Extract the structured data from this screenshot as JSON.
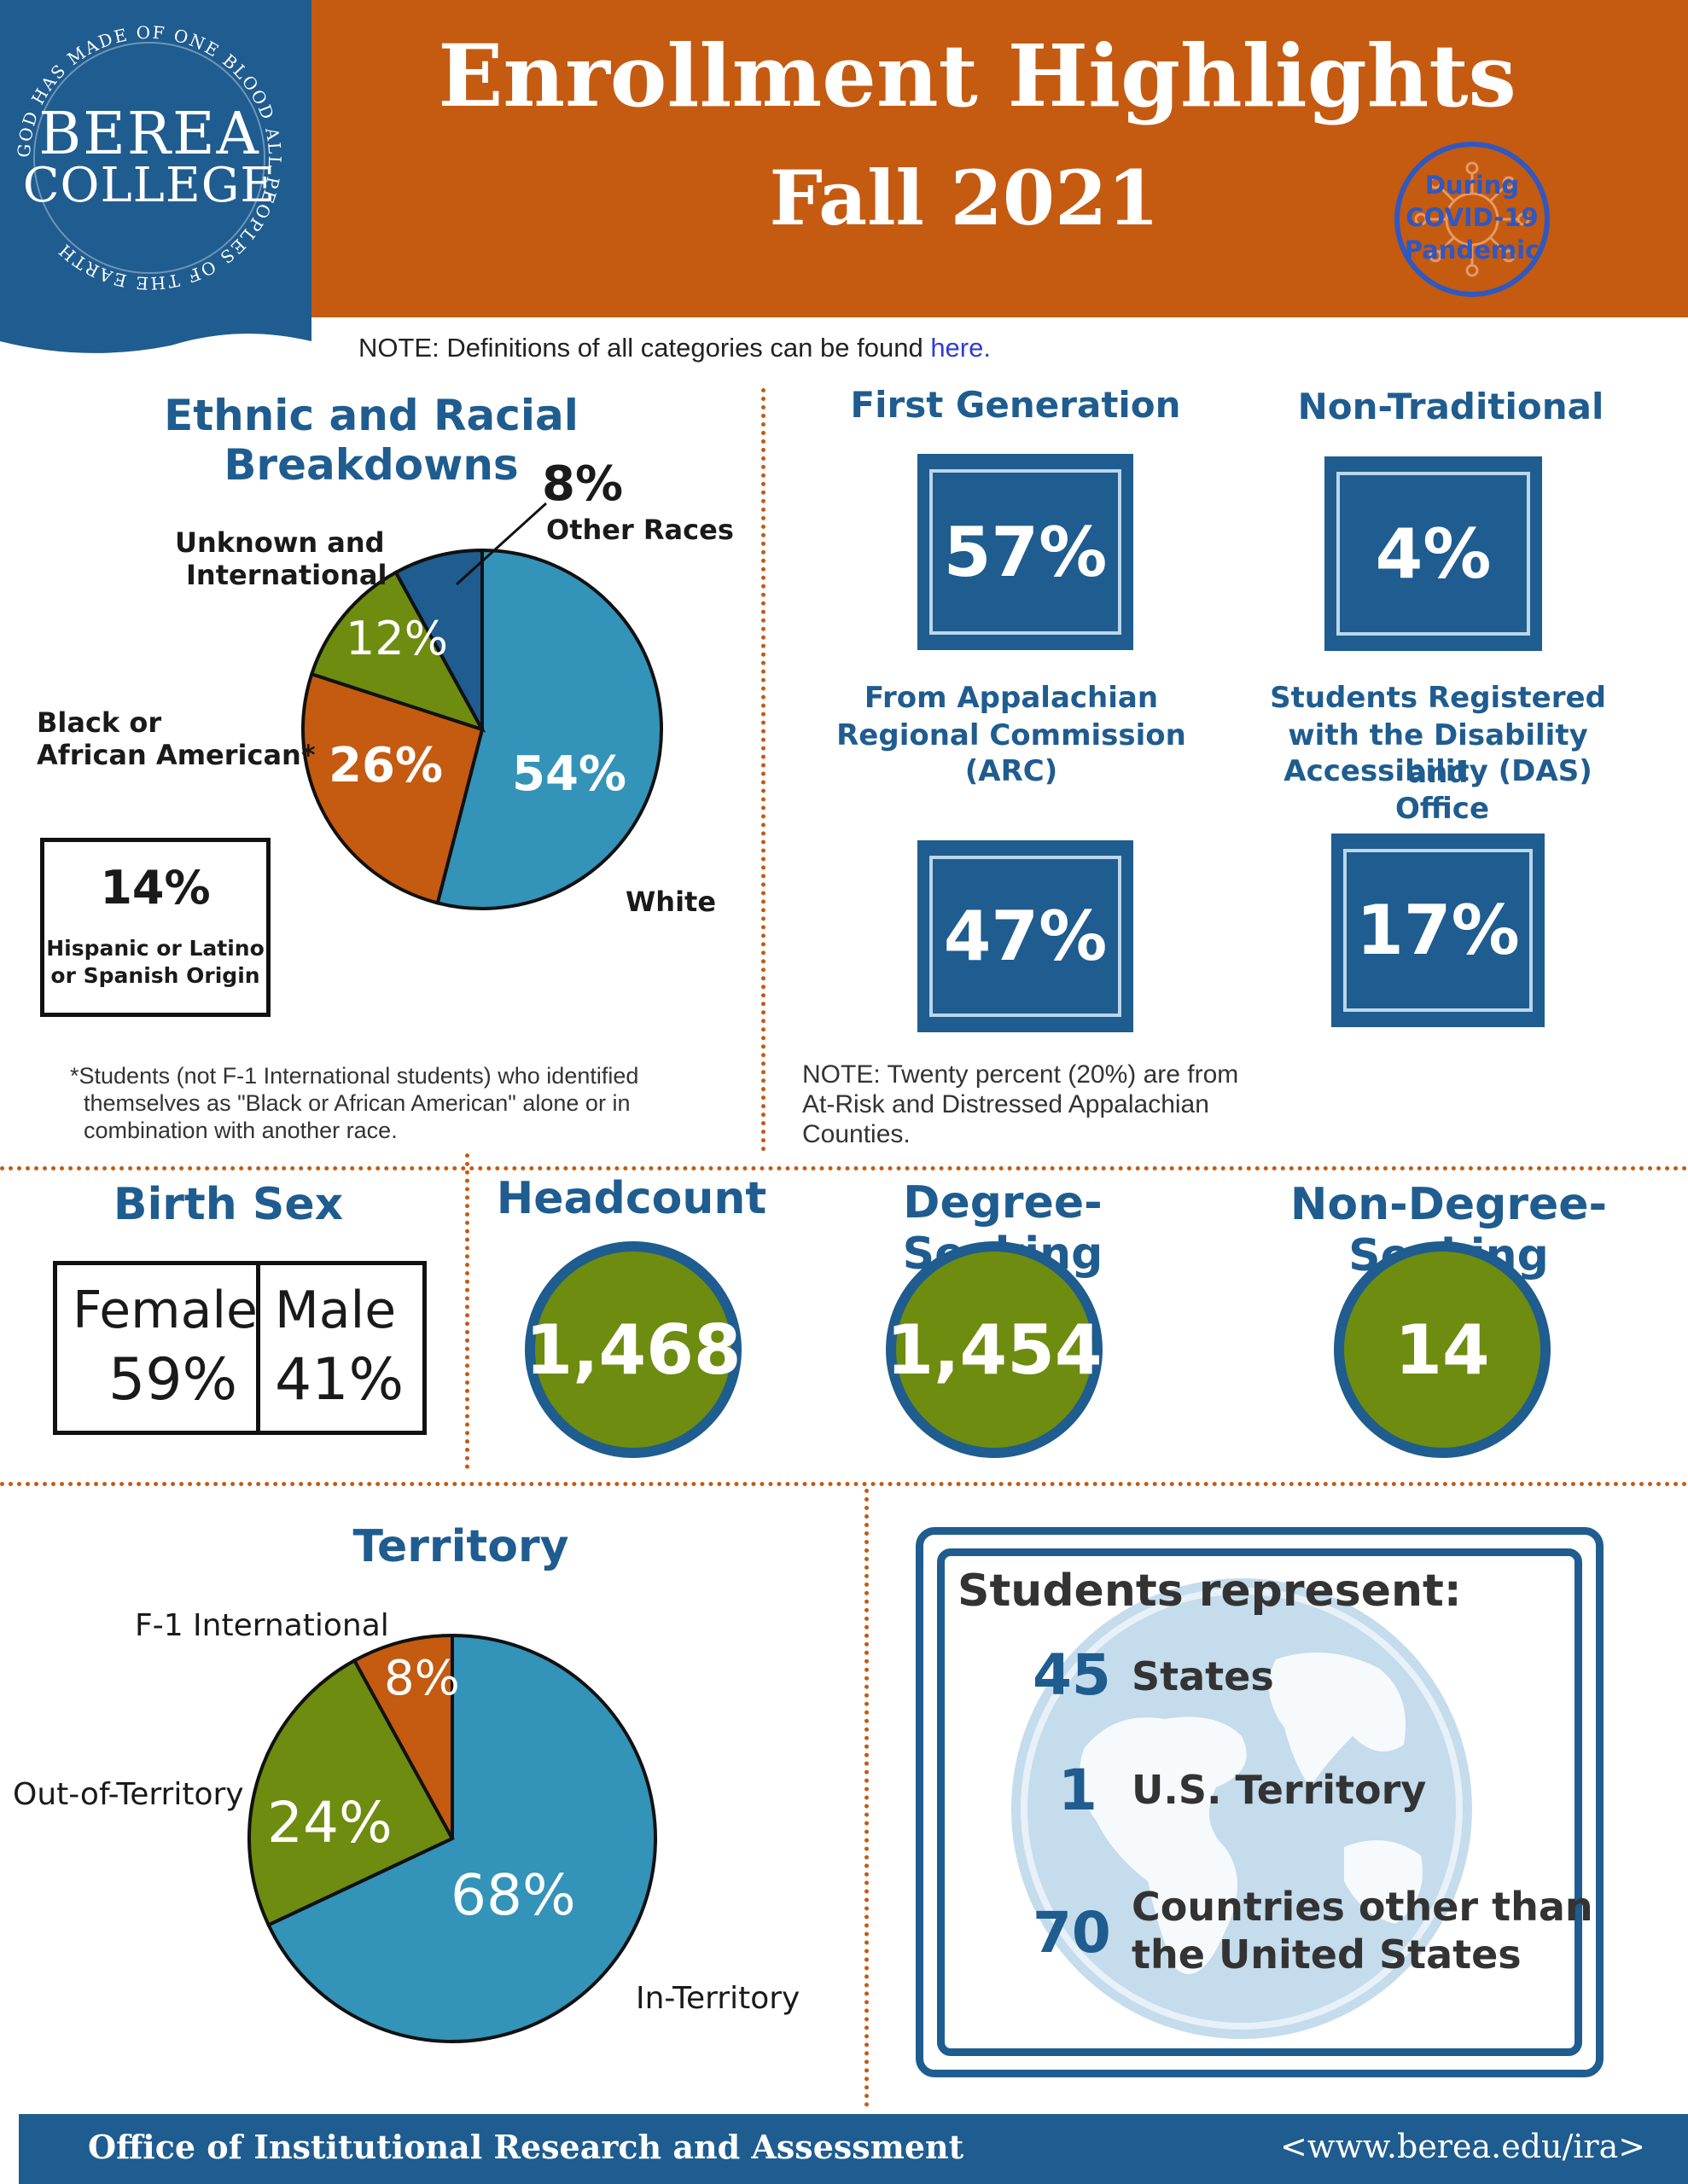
{
  "header": {
    "title": "Enrollment Highlights",
    "subtitle": "Fall 2021",
    "logo_line1": "BEREA",
    "logo_line2": "COLLEGE",
    "logo_ring_text": "GOD HAS MADE OF ONE BLOOD ALL PEOPLES OF THE EARTH",
    "stamp_lines": [
      "During",
      "COVID-19",
      "Pandemic"
    ]
  },
  "note": {
    "prefix": "NOTE:  Definitions of all categories can be found ",
    "link": "here."
  },
  "ethnic": {
    "title": "Ethnic and Racial Breakdowns",
    "slices": [
      {
        "label": "White",
        "value": 54,
        "display": "54%",
        "color": "#3393b8"
      },
      {
        "label": "Black or African American*",
        "value": 26,
        "display": "26%",
        "color": "#c55a11"
      },
      {
        "label": "Unknown and International",
        "value": 12,
        "display": "12%",
        "color": "#6e8c0f"
      },
      {
        "label": "Other Races",
        "value": 8,
        "display": "8%",
        "color": "#1f5c8f"
      }
    ],
    "label_other_pct": "8%",
    "label_other": "Other Races",
    "label_unknown_1": "Unknown and",
    "label_unknown_2": "International",
    "label_black_1": "Black or",
    "label_black_2": "African American*",
    "label_white": "White",
    "hispanic_pct": "14%",
    "hispanic_1": "Hispanic or Latino",
    "hispanic_2": "or Spanish Origin",
    "footnote_1": "*Students (not F-1 International students) who identified",
    "footnote_2": "themselves as \"Black or African American\" alone or in",
    "footnote_3": "combination with another race."
  },
  "stats": {
    "first_gen_title": "First Generation",
    "first_gen_value": "57%",
    "non_trad_title": "Non-Traditional",
    "non_trad_value": "4%",
    "arc_title": [
      "From Appalachian",
      "Regional Commission",
      "(ARC)"
    ],
    "arc_value": "47%",
    "das_title": [
      "Students Registered",
      "with the Disability and",
      "Accessibility (DAS)",
      "Office"
    ],
    "das_value": "17%",
    "arc_note": [
      "NOTE:  Twenty percent (20%) are from",
      "At-Risk and Distressed Appalachian",
      "Counties."
    ]
  },
  "birth_sex": {
    "title": "Birth Sex",
    "female_label": "Female",
    "female_value": "59%",
    "male_label": "Male",
    "male_value": "41%"
  },
  "counts": {
    "headcount_title": "Headcount",
    "headcount_value": "1,468",
    "degree_title": "Degree-Seeking",
    "degree_value": "1,454",
    "nondegree_title": "Non-Degree-Seeking",
    "nondegree_value": "14"
  },
  "territory": {
    "title": "Territory",
    "slices": [
      {
        "label": "In-Territory",
        "value": 68,
        "display": "68%",
        "color": "#3393b8"
      },
      {
        "label": "Out-of-Territory",
        "value": 24,
        "display": "24%",
        "color": "#6e8c0f"
      },
      {
        "label": "F-1 International",
        "value": 8,
        "display": "8%",
        "color": "#c55a11"
      }
    ],
    "label_f1": "F-1 International",
    "label_out": "Out-of-Territory",
    "label_in": "In-Territory"
  },
  "represent": {
    "title": "Students represent:",
    "states_num": "45",
    "states_label": "States",
    "territory_num": "1",
    "territory_label": "U.S. Territory",
    "countries_num": "70",
    "countries_label_1": "Countries other than",
    "countries_label_2": "the United States"
  },
  "footer": {
    "office": "Office of Institutional Research and Assessment",
    "url": "<www.berea.edu/ira>"
  },
  "colors": {
    "blue": "#1f5c8f",
    "orange": "#c55a11",
    "green": "#6e8c0f",
    "light_blue": "#3393b8"
  }
}
